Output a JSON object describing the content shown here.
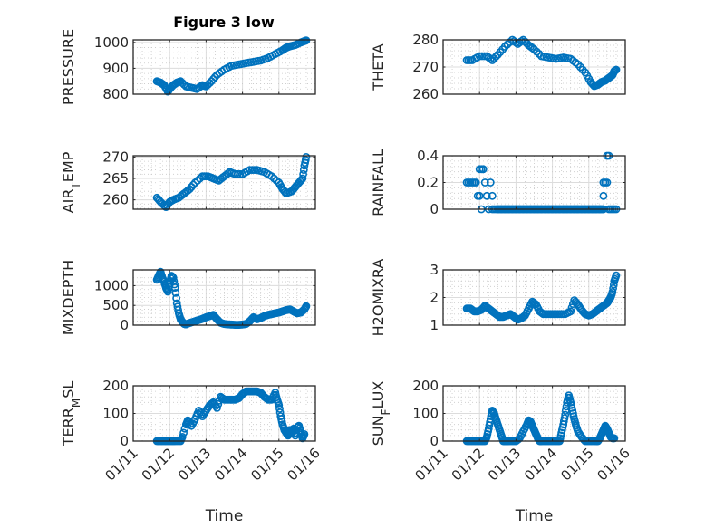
{
  "figure": {
    "title": "Figure 3 low",
    "marker_color": "#0072BD"
  },
  "chart_data": [
    {
      "type": "scatter",
      "name": "pressure",
      "title": "Figure 3 low",
      "xlabel": "",
      "ylabel": "PRESSURE",
      "xlim": [
        0,
        5
      ],
      "ylim": [
        800,
        1010
      ],
      "yticks": [
        800,
        900,
        1000
      ],
      "ytick_labels": [
        "800",
        "900",
        "1000"
      ],
      "xticks": [
        0,
        1,
        2,
        3,
        4,
        5
      ],
      "xtick_labels": [],
      "grid": "on, minor dotted",
      "marker": "circle",
      "x": [
        0.65,
        0.75,
        0.85,
        0.95,
        1.0,
        1.1,
        1.2,
        1.3,
        1.45,
        1.6,
        1.75,
        1.9,
        2.0,
        2.15,
        2.3,
        2.5,
        2.7,
        2.9,
        3.1,
        3.3,
        3.5,
        3.7,
        3.9,
        4.1,
        4.2,
        4.3,
        4.45,
        4.6,
        4.7,
        4.75
      ],
      "y": [
        850,
        845,
        835,
        810,
        820,
        835,
        845,
        850,
        830,
        825,
        820,
        835,
        830,
        850,
        875,
        895,
        910,
        915,
        920,
        925,
        930,
        940,
        955,
        970,
        980,
        985,
        990,
        1000,
        1005,
        1008
      ]
    },
    {
      "type": "scatter",
      "name": "theta",
      "title": "",
      "xlabel": "",
      "ylabel": "THETA",
      "xlim": [
        0,
        5
      ],
      "ylim": [
        260,
        280
      ],
      "yticks": [
        260,
        270,
        280
      ],
      "ytick_labels": [
        "260",
        "270",
        "280"
      ],
      "xticks": [
        0,
        1,
        2,
        3,
        4,
        5
      ],
      "xtick_labels": [],
      "grid": "on, minor dotted",
      "marker": "circle",
      "x": [
        0.65,
        0.8,
        1.0,
        1.2,
        1.35,
        1.5,
        1.7,
        1.9,
        2.05,
        2.2,
        2.35,
        2.5,
        2.7,
        2.9,
        3.1,
        3.3,
        3.5,
        3.7,
        3.9,
        4.05,
        4.15,
        4.25,
        4.35,
        4.45,
        4.55,
        4.65,
        4.7,
        4.75
      ],
      "y": [
        272.5,
        272.5,
        274,
        274,
        272.5,
        274.5,
        277.5,
        280,
        278.5,
        280,
        278,
        276.5,
        274,
        273.5,
        273,
        273.5,
        273,
        271,
        268,
        264.5,
        263,
        263.5,
        264.5,
        265,
        266,
        267,
        268.5,
        269
      ]
    },
    {
      "type": "scatter",
      "name": "air_temp",
      "title": "",
      "xlabel": "",
      "ylabel": "AIR_TEMP",
      "xlim": [
        0,
        5
      ],
      "ylim": [
        257.8,
        270.3
      ],
      "yticks": [
        260,
        265,
        270
      ],
      "ytick_labels": [
        "260",
        "265",
        "270"
      ],
      "xticks": [
        0,
        1,
        2,
        3,
        4,
        5
      ],
      "xtick_labels": [],
      "grid": "on, minor dotted",
      "marker": "circle",
      "x": [
        0.65,
        0.75,
        0.9,
        1.0,
        1.1,
        1.25,
        1.4,
        1.55,
        1.7,
        1.9,
        2.05,
        2.2,
        2.35,
        2.5,
        2.65,
        2.8,
        3.0,
        3.2,
        3.4,
        3.6,
        3.8,
        4.0,
        4.1,
        4.2,
        4.35,
        4.45,
        4.55,
        4.65,
        4.7,
        4.75
      ],
      "y": [
        260.5,
        259.5,
        258.3,
        259.5,
        260,
        260.5,
        261.5,
        262.5,
        264,
        265.5,
        265.5,
        265,
        264.5,
        265.5,
        266.5,
        266,
        266,
        267,
        267,
        266.5,
        265.5,
        264,
        262.5,
        261.5,
        262,
        263,
        264,
        265,
        268,
        270
      ]
    },
    {
      "type": "scatter",
      "name": "rainfall",
      "title": "",
      "xlabel": "",
      "ylabel": "RAINFALL",
      "xlim": [
        0,
        5
      ],
      "ylim": [
        0,
        0.4
      ],
      "yticks": [
        0,
        0.2,
        0.4
      ],
      "ytick_labels": [
        "0",
        "0.2",
        "0.4"
      ],
      "xticks": [
        0,
        1,
        2,
        3,
        4,
        5
      ],
      "xtick_labels": [],
      "grid": "on, minor dotted",
      "marker": "circle",
      "x": [
        0.65,
        0.7,
        0.75,
        0.8,
        0.85,
        0.9,
        0.95,
        1.0,
        1.05,
        1.1,
        1.0,
        1.05,
        1.1,
        1.15,
        1.2,
        1.25,
        1.3,
        1.35,
        1.35,
        1.4,
        1.45,
        1.5,
        1.6,
        1.7,
        1.8,
        1.9,
        2.0,
        2.1,
        2.2,
        2.3,
        2.4,
        2.5,
        2.6,
        2.7,
        2.8,
        2.9,
        3.0,
        3.1,
        3.2,
        3.3,
        3.4,
        3.5,
        3.6,
        3.7,
        3.8,
        3.9,
        4.0,
        4.1,
        4.2,
        4.3,
        4.4,
        4.4,
        4.45,
        4.5,
        4.4,
        4.5,
        4.55,
        4.55,
        4.6,
        4.65,
        4.7,
        4.75
      ],
      "y": [
        0.2,
        0.2,
        0.2,
        0.2,
        0.2,
        0.2,
        0.1,
        0.1,
        0,
        0.3,
        0.3,
        0.3,
        0.3,
        0.2,
        0.1,
        0,
        0.2,
        0.1,
        0,
        0,
        0,
        0,
        0,
        0,
        0,
        0,
        0,
        0,
        0,
        0,
        0,
        0,
        0,
        0,
        0,
        0,
        0,
        0,
        0,
        0,
        0,
        0,
        0,
        0,
        0,
        0,
        0,
        0,
        0,
        0,
        0.2,
        0.1,
        0.2,
        0.2,
        0,
        0.4,
        0.4,
        0,
        0,
        0,
        0,
        0
      ]
    },
    {
      "type": "scatter",
      "name": "mixdepth",
      "title": "",
      "xlabel": "",
      "ylabel": "MIXDEPTH",
      "xlim": [
        0,
        5
      ],
      "ylim": [
        0,
        1400
      ],
      "yticks": [
        0,
        500,
        1000
      ],
      "ytick_labels": [
        "0",
        "500",
        "1000"
      ],
      "xticks": [
        0,
        1,
        2,
        3,
        4,
        5
      ],
      "xtick_labels": [],
      "grid": "on, minor dotted",
      "marker": "circle",
      "x": [
        0.65,
        0.7,
        0.75,
        0.8,
        0.85,
        0.9,
        0.95,
        1.0,
        1.05,
        1.1,
        1.15,
        1.2,
        1.25,
        1.3,
        1.35,
        1.4,
        1.45,
        1.5,
        1.6,
        1.7,
        1.8,
        1.9,
        2.0,
        2.1,
        2.2,
        2.3,
        2.4,
        2.5,
        2.6,
        2.7,
        2.8,
        2.9,
        3.0,
        3.1,
        3.2,
        3.3,
        3.4,
        3.5,
        3.6,
        3.7,
        3.8,
        3.9,
        4.0,
        4.1,
        4.2,
        4.3,
        4.4,
        4.5,
        4.6,
        4.7,
        4.75
      ],
      "y": [
        1150,
        1250,
        1350,
        1200,
        1100,
        950,
        850,
        1050,
        1250,
        1200,
        950,
        550,
        300,
        150,
        80,
        30,
        20,
        40,
        70,
        100,
        130,
        160,
        200,
        230,
        260,
        150,
        60,
        30,
        20,
        15,
        10,
        10,
        15,
        30,
        100,
        200,
        150,
        180,
        230,
        260,
        280,
        300,
        320,
        350,
        380,
        400,
        350,
        300,
        320,
        400,
        480
      ]
    },
    {
      "type": "scatter",
      "name": "h2omixra",
      "title": "",
      "xlabel": "",
      "ylabel": "H2OMIXRA",
      "xlim": [
        0,
        5
      ],
      "ylim": [
        1,
        3
      ],
      "yticks": [
        1,
        2,
        3
      ],
      "ytick_labels": [
        "1",
        "2",
        "3"
      ],
      "xticks": [
        0,
        1,
        2,
        3,
        4,
        5
      ],
      "xtick_labels": [],
      "grid": "on, minor dotted",
      "marker": "circle",
      "x": [
        0.65,
        0.75,
        0.85,
        0.95,
        1.05,
        1.15,
        1.25,
        1.35,
        1.45,
        1.55,
        1.65,
        1.75,
        1.85,
        1.95,
        2.05,
        2.15,
        2.25,
        2.35,
        2.45,
        2.55,
        2.65,
        2.75,
        2.9,
        3.05,
        3.2,
        3.35,
        3.5,
        3.6,
        3.7,
        3.8,
        3.9,
        4.0,
        4.1,
        4.2,
        4.3,
        4.4,
        4.5,
        4.55,
        4.6,
        4.65,
        4.7,
        4.75
      ],
      "y": [
        1.6,
        1.6,
        1.5,
        1.5,
        1.55,
        1.7,
        1.6,
        1.5,
        1.4,
        1.3,
        1.3,
        1.35,
        1.4,
        1.3,
        1.2,
        1.25,
        1.35,
        1.6,
        1.85,
        1.75,
        1.5,
        1.4,
        1.4,
        1.4,
        1.4,
        1.4,
        1.5,
        1.9,
        1.75,
        1.55,
        1.4,
        1.35,
        1.4,
        1.5,
        1.6,
        1.7,
        1.8,
        1.9,
        2.0,
        2.2,
        2.6,
        2.8
      ]
    },
    {
      "type": "scatter",
      "name": "terr_msl",
      "title": "",
      "xlabel": "Time",
      "ylabel": "TERR_MSL",
      "xlim": [
        0,
        5
      ],
      "ylim": [
        0,
        200
      ],
      "yticks": [
        0,
        100,
        200
      ],
      "ytick_labels": [
        "0",
        "100",
        "200"
      ],
      "xticks": [
        0,
        1,
        2,
        3,
        4,
        5
      ],
      "xtick_labels": [
        "01/11",
        "01/12",
        "01/13",
        "01/14",
        "01/15",
        "01/16"
      ],
      "grid": "on, minor dotted",
      "marker": "circle",
      "x": [
        0.65,
        0.75,
        0.85,
        0.95,
        1.05,
        1.15,
        1.3,
        1.35,
        1.45,
        1.5,
        1.6,
        1.7,
        1.8,
        1.9,
        2.0,
        2.1,
        2.2,
        2.3,
        2.4,
        2.5,
        2.6,
        2.7,
        2.8,
        2.9,
        3.0,
        3.1,
        3.2,
        3.3,
        3.4,
        3.5,
        3.6,
        3.7,
        3.8,
        3.9,
        3.95,
        4.0,
        4.05,
        4.1,
        4.15,
        4.2,
        4.25,
        4.3,
        4.35,
        4.4,
        4.45,
        4.5,
        4.55,
        4.6,
        4.65,
        4.7
      ],
      "y": [
        0,
        0,
        0,
        0,
        0,
        0,
        0,
        15,
        60,
        75,
        55,
        80,
        110,
        90,
        110,
        130,
        140,
        120,
        160,
        150,
        150,
        150,
        150,
        155,
        170,
        180,
        180,
        180,
        180,
        175,
        160,
        150,
        150,
        175,
        150,
        130,
        90,
        60,
        40,
        30,
        20,
        40,
        30,
        45,
        20,
        50,
        55,
        30,
        10,
        25
      ]
    },
    {
      "type": "scatter",
      "name": "sun_flux",
      "title": "",
      "xlabel": "Time",
      "ylabel": "SUN_FLUX",
      "xlim": [
        0,
        5
      ],
      "ylim": [
        0,
        200
      ],
      "yticks": [
        0,
        100,
        200
      ],
      "ytick_labels": [
        "0",
        "100",
        "200"
      ],
      "xticks": [
        0,
        1,
        2,
        3,
        4,
        5
      ],
      "xtick_labels": [
        "01/11",
        "01/12",
        "01/13",
        "01/14",
        "01/15",
        "01/16"
      ],
      "grid": "on, minor dotted",
      "marker": "circle",
      "x": [
        0.65,
        0.75,
        0.85,
        0.95,
        1.05,
        1.15,
        1.2,
        1.25,
        1.3,
        1.35,
        1.4,
        1.45,
        1.5,
        1.55,
        1.6,
        1.65,
        1.7,
        1.75,
        1.8,
        1.9,
        2.0,
        2.1,
        2.2,
        2.3,
        2.35,
        2.4,
        2.45,
        2.5,
        2.55,
        2.6,
        2.65,
        2.7,
        2.8,
        2.9,
        3.0,
        3.1,
        3.2,
        3.25,
        3.3,
        3.35,
        3.4,
        3.45,
        3.5,
        3.55,
        3.6,
        3.65,
        3.7,
        3.8,
        3.9,
        4.0,
        4.1,
        4.2,
        4.25,
        4.3,
        4.35,
        4.4,
        4.45,
        4.5,
        4.55,
        4.6,
        4.65,
        4.7
      ],
      "y": [
        0,
        0,
        0,
        0,
        0,
        0,
        15,
        45,
        80,
        110,
        100,
        80,
        60,
        40,
        20,
        0,
        0,
        0,
        0,
        0,
        0,
        10,
        35,
        60,
        75,
        70,
        55,
        40,
        25,
        10,
        0,
        0,
        0,
        0,
        0,
        0,
        0,
        30,
        60,
        95,
        140,
        165,
        140,
        110,
        80,
        55,
        35,
        15,
        0,
        0,
        0,
        0,
        0,
        10,
        25,
        40,
        55,
        45,
        30,
        15,
        10,
        10
      ]
    }
  ]
}
